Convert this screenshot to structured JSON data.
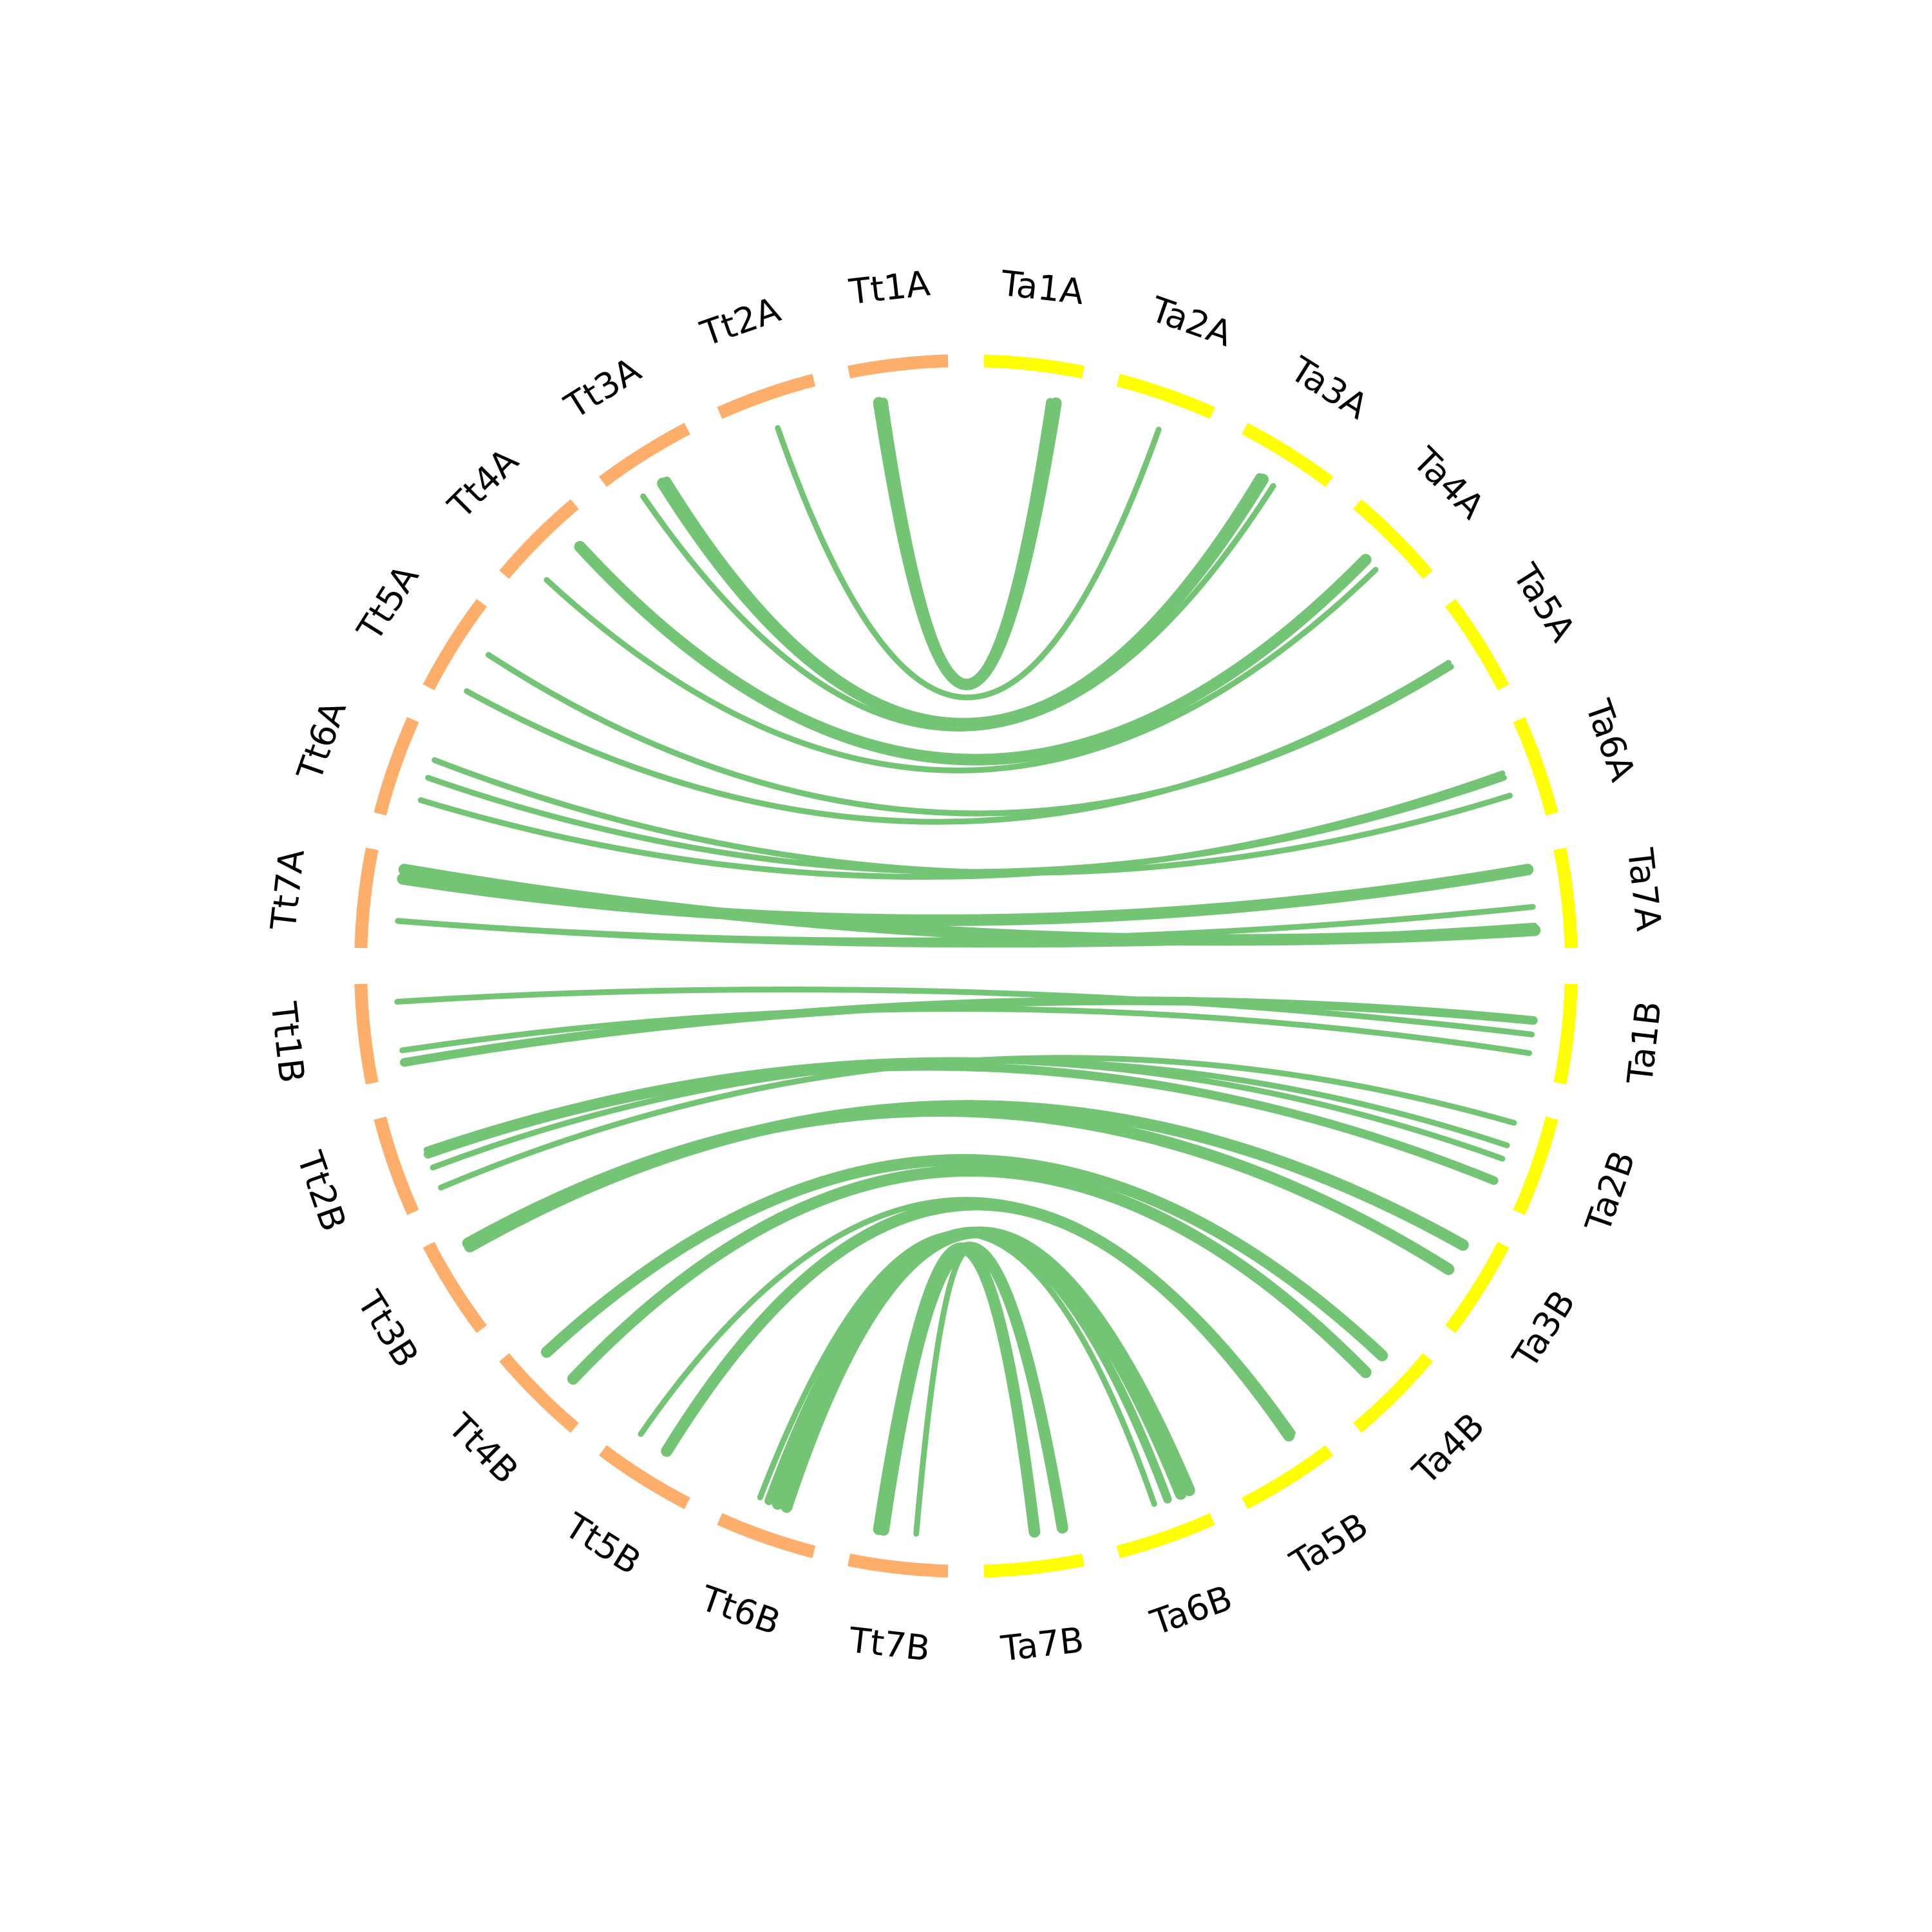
{
  "colors": {
    "tt": "#fdae6b",
    "ta": "#ffff00",
    "link": "#74c476",
    "label": "#000000"
  },
  "segments": [
    {
      "id": "Ta1A",
      "label": "Ta1A",
      "group": "ta"
    },
    {
      "id": "Ta2A",
      "label": "Ta2A",
      "group": "ta"
    },
    {
      "id": "Ta3A",
      "label": "Ta3A",
      "group": "ta"
    },
    {
      "id": "Ta4A",
      "label": "Ta4A",
      "group": "ta"
    },
    {
      "id": "Ta5A",
      "label": "Ta5A",
      "group": "ta"
    },
    {
      "id": "Ta6A",
      "label": "Ta6A",
      "group": "ta"
    },
    {
      "id": "Ta7A",
      "label": "Ta7A",
      "group": "ta"
    },
    {
      "id": "Ta1B",
      "label": "Ta1B",
      "group": "ta"
    },
    {
      "id": "Ta2B",
      "label": "Ta2B",
      "group": "ta"
    },
    {
      "id": "Ta3B",
      "label": "Ta3B",
      "group": "ta"
    },
    {
      "id": "Ta4B",
      "label": "Ta4B",
      "group": "ta"
    },
    {
      "id": "Ta5B",
      "label": "Ta5B",
      "group": "ta"
    },
    {
      "id": "Ta6B",
      "label": "Ta6B",
      "group": "ta"
    },
    {
      "id": "Ta7B",
      "label": "Ta7B",
      "group": "ta"
    },
    {
      "id": "Tt7B",
      "label": "Tt7B",
      "group": "tt"
    },
    {
      "id": "Tt6B",
      "label": "Tt6B",
      "group": "tt"
    },
    {
      "id": "Tt5B",
      "label": "Tt5B",
      "group": "tt"
    },
    {
      "id": "Tt4B",
      "label": "Tt4B",
      "group": "tt"
    },
    {
      "id": "Tt3B",
      "label": "Tt3B",
      "group": "tt"
    },
    {
      "id": "Tt2B",
      "label": "Tt2B",
      "group": "tt"
    },
    {
      "id": "Tt1B",
      "label": "Tt1B",
      "group": "tt"
    },
    {
      "id": "Tt7A",
      "label": "Tt7A",
      "group": "tt"
    },
    {
      "id": "Tt6A",
      "label": "Tt6A",
      "group": "tt"
    },
    {
      "id": "Tt5A",
      "label": "Tt5A",
      "group": "tt"
    },
    {
      "id": "Tt4A",
      "label": "Tt4A",
      "group": "tt"
    },
    {
      "id": "Tt3A",
      "label": "Tt3A",
      "group": "tt"
    },
    {
      "id": "Tt2A",
      "label": "Tt2A",
      "group": "tt"
    },
    {
      "id": "Tt1A",
      "label": "Tt1A",
      "group": "tt"
    }
  ],
  "links": [
    {
      "from": "Tt1A",
      "to": "Ta1A",
      "f": 0.25,
      "t": 0.78,
      "weight": 3
    },
    {
      "from": "Tt1A",
      "to": "Ta1A",
      "f": 0.3,
      "t": 0.72,
      "weight": 2
    },
    {
      "from": "Tt2A",
      "to": "Ta2A",
      "f": 0.5,
      "t": 0.55,
      "weight": 1
    },
    {
      "from": "Tt3A",
      "to": "Ta3A",
      "f": 0.25,
      "t": 0.55,
      "weight": 1
    },
    {
      "from": "Tt3A",
      "to": "Ta3A",
      "f": 0.5,
      "t": 0.42,
      "weight": 3
    },
    {
      "from": "Tt3A",
      "to": "Ta3A",
      "f": 0.55,
      "t": 0.38,
      "weight": 2
    },
    {
      "from": "Tt4A",
      "to": "Ta4A",
      "f": 0.25,
      "t": 0.6,
      "weight": 1
    },
    {
      "from": "Tt4A",
      "to": "Ta4A",
      "f": 0.75,
      "t": 0.45,
      "weight": 3
    },
    {
      "from": "Tt5A",
      "to": "Ta5A",
      "f": 0.15,
      "t": 0.5,
      "weight": 1
    },
    {
      "from": "Tt5A",
      "to": "Ta5A",
      "f": 0.6,
      "t": 0.55,
      "weight": 1
    },
    {
      "from": "Tt6A",
      "to": "Ta6A",
      "f": 0.25,
      "t": 0.45,
      "weight": 1
    },
    {
      "from": "Tt6A",
      "to": "Ta6A",
      "f": 0.5,
      "t": 0.5,
      "weight": 1
    },
    {
      "from": "Tt6A",
      "to": "Ta6A",
      "f": 0.7,
      "t": 0.7,
      "weight": 1
    },
    {
      "from": "Tt7A",
      "to": "Ta7A",
      "f": 0.3,
      "t": 0.55,
      "weight": 1
    },
    {
      "from": "Tt7A",
      "to": "Ta7A",
      "f": 0.3,
      "t": 0.75,
      "weight": 1
    },
    {
      "from": "Tt7A",
      "to": "Ta7A",
      "f": 0.75,
      "t": 0.15,
      "weight": 3
    },
    {
      "from": "Tt7A",
      "to": "Ta7A",
      "f": 0.85,
      "t": 0.8,
      "weight": 3
    },
    {
      "from": "Tt1B",
      "to": "Ta1B",
      "f": 0.15,
      "t": 0.4,
      "weight": 2
    },
    {
      "from": "Tt1B",
      "to": "Ta1B",
      "f": 0.28,
      "t": 0.75,
      "weight": 1
    },
    {
      "from": "Tt1B",
      "to": "Ta1B",
      "f": 0.8,
      "t": 0.55,
      "weight": 1
    },
    {
      "from": "Tt2B",
      "to": "Ta2B",
      "f": 0.12,
      "t": 0.15,
      "weight": 1
    },
    {
      "from": "Tt2B",
      "to": "Ta2B",
      "f": 0.35,
      "t": 0.4,
      "weight": 1
    },
    {
      "from": "Tt2B",
      "to": "Ta2B",
      "f": 0.55,
      "t": 0.55,
      "weight": 1
    },
    {
      "from": "Tt2B",
      "to": "Ta2B",
      "f": 0.5,
      "t": 0.8,
      "weight": 2
    },
    {
      "from": "Tt3B",
      "to": "Ta3B",
      "f": 0.78,
      "t": 0.2,
      "weight": 3
    },
    {
      "from": "Tt3B",
      "to": "Ta3B",
      "f": 0.82,
      "t": 0.5,
      "weight": 3
    },
    {
      "from": "Tt4B",
      "to": "Ta4B",
      "f": 0.35,
      "t": 0.55,
      "weight": 3
    },
    {
      "from": "Tt4B",
      "to": "Ta4B",
      "f": 0.75,
      "t": 0.3,
      "weight": 3
    },
    {
      "from": "Tt5B",
      "to": "Ta5B",
      "f": 0.45,
      "t": 0.25,
      "weight": 3
    },
    {
      "from": "Tt5B",
      "to": "Ta5B",
      "f": 0.78,
      "t": 0.2,
      "weight": 1
    },
    {
      "from": "Tt6B",
      "to": "Ta6B",
      "f": 0.4,
      "t": 0.1,
      "weight": 3
    },
    {
      "from": "Tt6B",
      "to": "Ta6B",
      "f": 0.5,
      "t": 0.2,
      "weight": 3
    },
    {
      "from": "Tt6B",
      "to": "Ta6B",
      "f": 0.6,
      "t": 0.35,
      "weight": 2
    },
    {
      "from": "Tt6B",
      "to": "Ta6B",
      "f": 0.7,
      "t": 0.5,
      "weight": 1
    },
    {
      "from": "Tt7B",
      "to": "Ta7B",
      "f": 0.35,
      "t": 0.48,
      "weight": 1
    },
    {
      "from": "Tt7B",
      "to": "Ta7B",
      "f": 0.7,
      "t": 0.15,
      "weight": 3
    },
    {
      "from": "Tt7B",
      "to": "Ta7B",
      "f": 0.75,
      "t": 0.45,
      "weight": 3
    }
  ]
}
